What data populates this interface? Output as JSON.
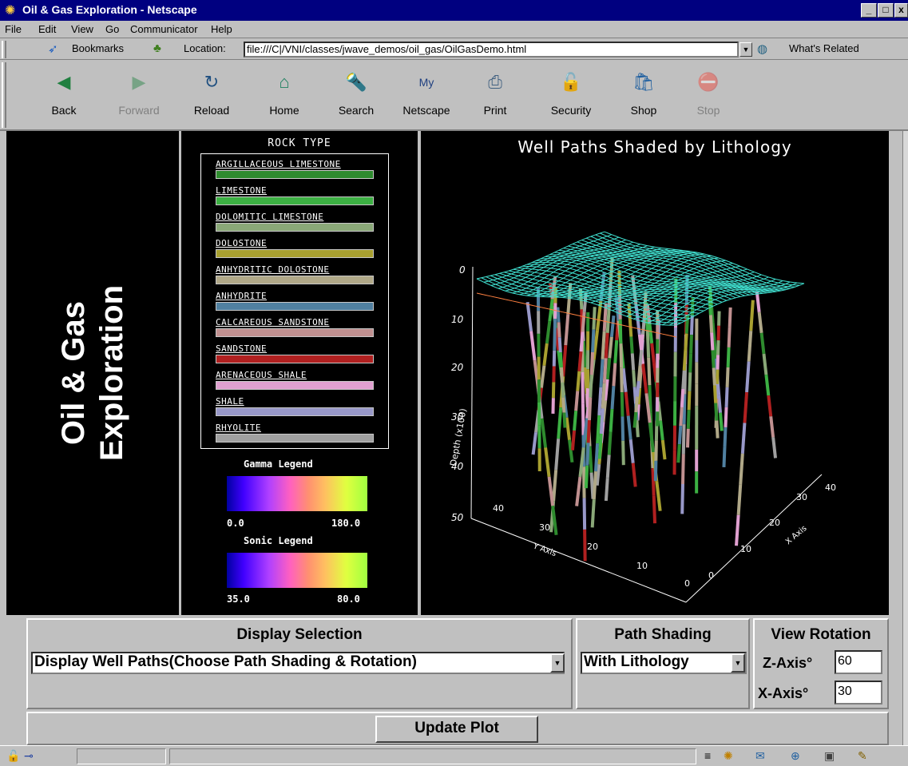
{
  "window": {
    "title": "Oil & Gas Exploration - Netscape"
  },
  "menu": [
    "File",
    "Edit",
    "View",
    "Go",
    "Communicator",
    "Help"
  ],
  "location": {
    "bookmarks_label": "Bookmarks",
    "location_label": "Location:",
    "url": "file:///C|/VNI/classes/jwave_demos/oil_gas/OilGasDemo.html",
    "whats_related": "What's Related"
  },
  "toolbar": [
    "Back",
    "Forward",
    "Reload",
    "Home",
    "Search",
    "Netscape",
    "Print",
    "Security",
    "Shop",
    "Stop"
  ],
  "banner": {
    "line1": "Oil & Gas",
    "line2": "Exploration"
  },
  "legend": {
    "title": "ROCK TYPE",
    "rocks": [
      {
        "name": "ARGILLACEOUS LIMESTONE",
        "color": "#2e8b2e"
      },
      {
        "name": "LIMESTONE",
        "color": "#3cb043"
      },
      {
        "name": "DOLOMITIC LIMESTONE",
        "color": "#8aa878"
      },
      {
        "name": "DOLOSTONE",
        "color": "#a8a030"
      },
      {
        "name": "ANHYDRITIC DOLOSTONE",
        "color": "#b0a888"
      },
      {
        "name": "ANHYDRITE",
        "color": "#5080a0"
      },
      {
        "name": "CALCAREOUS SANDSTONE",
        "color": "#c09090"
      },
      {
        "name": "SANDSTONE",
        "color": "#b02020"
      },
      {
        "name": "ARENACEOUS SHALE",
        "color": "#e0a0d0"
      },
      {
        "name": "SHALE",
        "color": "#9898c8"
      },
      {
        "name": "RHYOLITE",
        "color": "#a0a0a0"
      }
    ],
    "gamma": {
      "title": "Gamma Legend",
      "min": "0.0",
      "max": "180.0"
    },
    "sonic": {
      "title": "Sonic Legend",
      "min": "35.0",
      "max": "80.0"
    }
  },
  "plot": {
    "title": "Well Paths Shaded by Lithology",
    "depth_label": "Depth (x100)",
    "depth_ticks": [
      "0",
      "10",
      "20",
      "30",
      "40",
      "50"
    ],
    "y_label": "Y Axis",
    "y_ticks": [
      "0",
      "10",
      "20",
      "30",
      "40"
    ],
    "x_label": "X Axis",
    "x_ticks": [
      "0",
      "10",
      "20",
      "30",
      "40"
    ]
  },
  "controls": {
    "display_selection": {
      "label": "Display Selection",
      "value": "Display Well Paths(Choose Path Shading & Rotation)"
    },
    "path_shading": {
      "label": "Path Shading",
      "value": "With Lithology"
    },
    "view_rotation": {
      "label": "View Rotation",
      "z_label": "Z-Axis°",
      "z_value": "60",
      "x_label": "X-Axis°",
      "x_value": "30"
    },
    "update_button": "Update Plot"
  }
}
